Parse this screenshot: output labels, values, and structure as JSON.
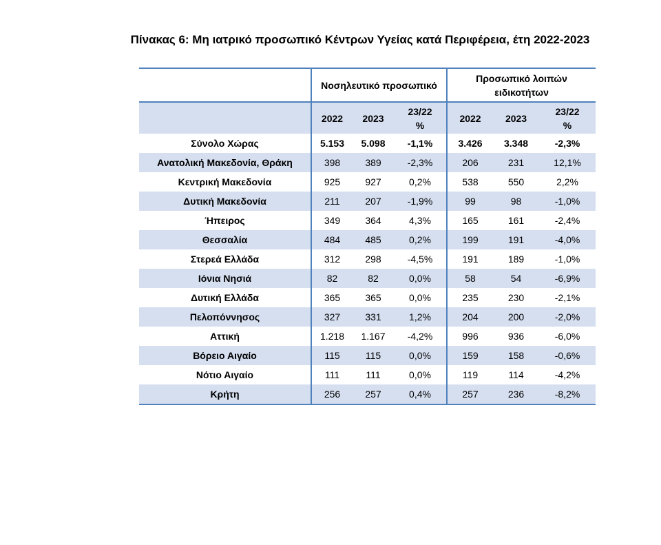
{
  "title": "Πίνακας 6: Μη ιατρικό προσωπικό Κέντρων Υγείας κατά Περιφέρεια, έτη 2022-2023",
  "groups": {
    "nursing": "Νοσηλευτικό προσωπικό",
    "other_line1": "Προσωπικό λοιπών",
    "other_line2": "ειδικοτήτων"
  },
  "subheaders": {
    "y2022": "2022",
    "y2023": "2023",
    "change_line1": "23/22",
    "change_line2": "%"
  },
  "rows": [
    {
      "name": "Σύνολο Χώρας",
      "n2022": "5.153",
      "n2023": "5.098",
      "nchg": "-1,1%",
      "o2022": "3.426",
      "o2023": "3.348",
      "ochg": "-2,3%"
    },
    {
      "name": "Ανατολική Μακεδονία, Θράκη",
      "n2022": "398",
      "n2023": "389",
      "nchg": "-2,3%",
      "o2022": "206",
      "o2023": "231",
      "ochg": "12,1%"
    },
    {
      "name": "Κεντρική Μακεδονία",
      "n2022": "925",
      "n2023": "927",
      "nchg": "0,2%",
      "o2022": "538",
      "o2023": "550",
      "ochg": "2,2%"
    },
    {
      "name": "Δυτική Μακεδονία",
      "n2022": "211",
      "n2023": "207",
      "nchg": "-1,9%",
      "o2022": "99",
      "o2023": "98",
      "ochg": "-1,0%"
    },
    {
      "name": "Ήπειρος",
      "n2022": "349",
      "n2023": "364",
      "nchg": "4,3%",
      "o2022": "165",
      "o2023": "161",
      "ochg": "-2,4%"
    },
    {
      "name": "Θεσσαλία",
      "n2022": "484",
      "n2023": "485",
      "nchg": "0,2%",
      "o2022": "199",
      "o2023": "191",
      "ochg": "-4,0%"
    },
    {
      "name": "Στερεά Ελλάδα",
      "n2022": "312",
      "n2023": "298",
      "nchg": "-4,5%",
      "o2022": "191",
      "o2023": "189",
      "ochg": "-1,0%"
    },
    {
      "name": "Ιόνια Νησιά",
      "n2022": "82",
      "n2023": "82",
      "nchg": "0,0%",
      "o2022": "58",
      "o2023": "54",
      "ochg": "-6,9%"
    },
    {
      "name": "Δυτική Ελλάδα",
      "n2022": "365",
      "n2023": "365",
      "nchg": "0,0%",
      "o2022": "235",
      "o2023": "230",
      "ochg": "-2,1%"
    },
    {
      "name": "Πελοπόννησος",
      "n2022": "327",
      "n2023": "331",
      "nchg": "1,2%",
      "o2022": "204",
      "o2023": "200",
      "ochg": "-2,0%"
    },
    {
      "name": "Αττική",
      "n2022": "1.218",
      "n2023": "1.167",
      "nchg": "-4,2%",
      "o2022": "996",
      "o2023": "936",
      "ochg": "-6,0%"
    },
    {
      "name": "Βόρειο Αιγαίο",
      "n2022": "115",
      "n2023": "115",
      "nchg": "0,0%",
      "o2022": "159",
      "o2023": "158",
      "ochg": "-0,6%"
    },
    {
      "name": "Νότιο Αιγαίο",
      "n2022": "111",
      "n2023": "111",
      "nchg": "0,0%",
      "o2022": "119",
      "o2023": "114",
      "ochg": "-4,2%"
    },
    {
      "name": "Κρήτη",
      "n2022": "256",
      "n2023": "257",
      "nchg": "0,4%",
      "o2022": "257",
      "o2023": "236",
      "ochg": "-8,2%"
    }
  ],
  "colors": {
    "rule": "#4f81bd",
    "band": "#d6dff0"
  }
}
